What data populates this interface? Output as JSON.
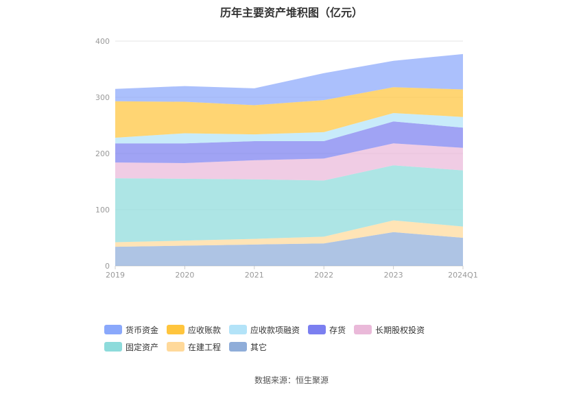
{
  "chart_data": {
    "type": "area",
    "stacked": true,
    "title": "历年主要资产堆积图（亿元）",
    "x": [
      "2019",
      "2020",
      "2021",
      "2022",
      "2023",
      "2024Q1"
    ],
    "ylim": [
      0,
      400
    ],
    "yticks": [
      0,
      100,
      200,
      300,
      400
    ],
    "grid": true,
    "legend_position": "bottom",
    "series": [
      {
        "name": "其它",
        "color": "#8fadd9",
        "values": [
          34,
          36,
          38,
          40,
          60,
          50
        ]
      },
      {
        "name": "在建工程",
        "color": "#ffd99a",
        "values": [
          8,
          9,
          10,
          12,
          21,
          20
        ]
      },
      {
        "name": "固定资产",
        "color": "#8ddbdb",
        "values": [
          114,
          110,
          106,
          100,
          98,
          100
        ]
      },
      {
        "name": "长期股权投资",
        "color": "#eab9d9",
        "values": [
          28,
          28,
          34,
          39,
          39,
          40
        ]
      },
      {
        "name": "存货",
        "color": "#7b7ff0",
        "values": [
          34,
          35,
          34,
          31,
          39,
          36
        ]
      },
      {
        "name": "应收款项融资",
        "color": "#b3e3f8",
        "values": [
          10,
          18,
          12,
          16,
          15,
          19
        ]
      },
      {
        "name": "应收账款",
        "color": "#ffc53d",
        "values": [
          65,
          56,
          52,
          57,
          46,
          49
        ]
      },
      {
        "name": "货币资金",
        "color": "#8aa8fb",
        "values": [
          22,
          28,
          30,
          48,
          47,
          63
        ]
      }
    ]
  },
  "legend": {
    "items": [
      {
        "label": "货币资金",
        "color": "#8aa8fb"
      },
      {
        "label": "应收账款",
        "color": "#ffc53d"
      },
      {
        "label": "应收款项融资",
        "color": "#b3e3f8"
      },
      {
        "label": "存货",
        "color": "#7b7ff0"
      },
      {
        "label": "长期股权投资",
        "color": "#eab9d9"
      },
      {
        "label": "固定资产",
        "color": "#8ddbdb"
      },
      {
        "label": "在建工程",
        "color": "#ffd99a"
      },
      {
        "label": "其它",
        "color": "#8fadd9"
      }
    ]
  },
  "source_text": "数据来源：恒生聚源"
}
